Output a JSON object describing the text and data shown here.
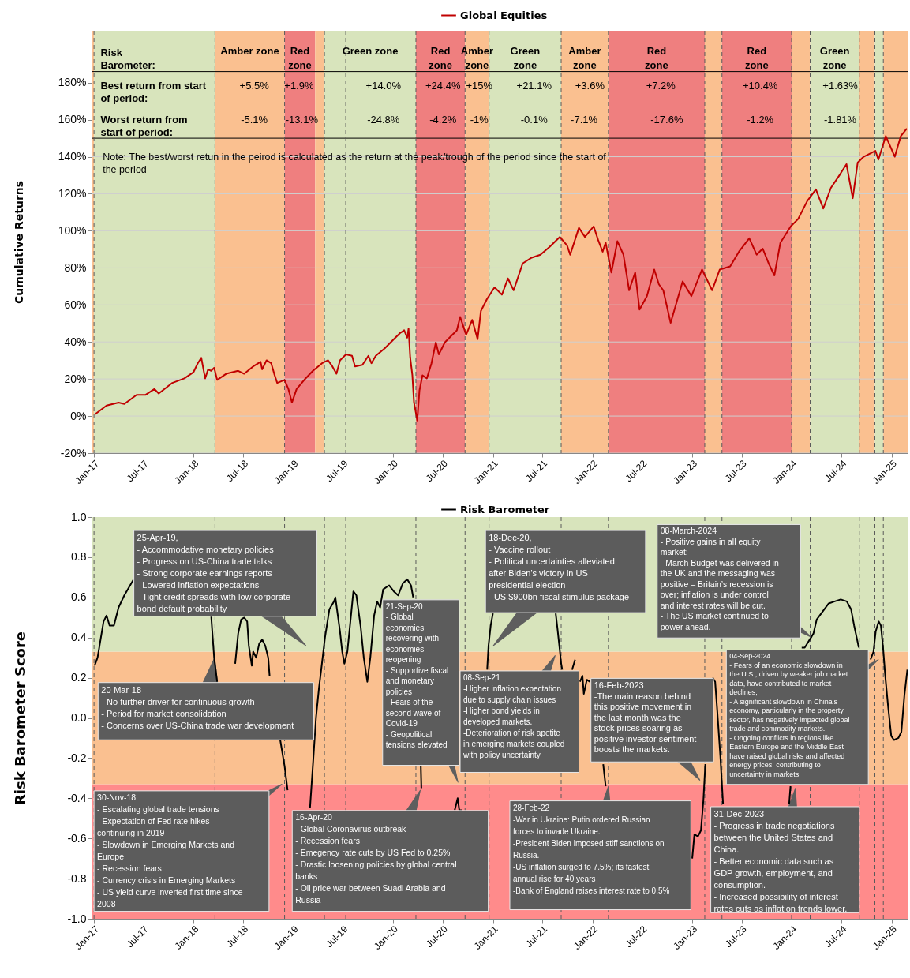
{
  "chart_data": [
    {
      "type": "line",
      "ylabel": "Cumulative Returns",
      "legend": "top",
      "grid": "y",
      "xlim": [
        "2016-12-23",
        "2025-02-28"
      ],
      "ylim": [
        -20,
        208
      ],
      "xticks": [
        {
          "value": "2017-01",
          "label": "Jan-17"
        },
        {
          "value": "2017-07",
          "label": "Jul-17"
        },
        {
          "value": "2018-01",
          "label": "Jan-18"
        },
        {
          "value": "2018-07",
          "label": "Jul-18"
        },
        {
          "value": "2019-01",
          "label": "Jan-19"
        },
        {
          "value": "2019-07",
          "label": "Jul-19"
        },
        {
          "value": "2020-01",
          "label": "Jan-20"
        },
        {
          "value": "2020-07",
          "label": "Jul-20"
        },
        {
          "value": "2021-01",
          "label": "Jan-21"
        },
        {
          "value": "2021-07",
          "label": "Jul-21"
        },
        {
          "value": "2022-01",
          "label": "Jan-22"
        },
        {
          "value": "2022-07",
          "label": "Jul-22"
        },
        {
          "value": "2023-01",
          "label": "Jan-23"
        },
        {
          "value": "2023-07",
          "label": "Jul-23"
        },
        {
          "value": "2024-01",
          "label": "Jan-24"
        },
        {
          "value": "2024-07",
          "label": "Jul-24"
        },
        {
          "value": "2025-01",
          "label": "Jan-25"
        }
      ],
      "yticks": [
        {
          "value": -20,
          "label": "-20%"
        },
        {
          "value": 0,
          "label": "0%"
        },
        {
          "value": 20,
          "label": "20%"
        },
        {
          "value": 40,
          "label": "40%"
        },
        {
          "value": 60,
          "label": "60%"
        },
        {
          "value": 80,
          "label": "80%"
        },
        {
          "value": 100,
          "label": "100%"
        },
        {
          "value": 120,
          "label": "120%"
        },
        {
          "value": 140,
          "label": "140%"
        },
        {
          "value": 160,
          "label": "160%"
        },
        {
          "value": 180,
          "label": "180%"
        }
      ],
      "x": [
        "2017-01-03",
        "2017-02-16",
        "2017-04-01",
        "2017-04-22",
        "2017-06-06",
        "2017-07-08",
        "2017-08-10",
        "2017-08-26",
        "2017-10-15",
        "2017-11-28",
        "2017-12-31",
        "2018-01-16",
        "2018-01-29",
        "2018-02-12",
        "2018-02-23",
        "2018-03-06",
        "2018-03-17",
        "2018-03-28",
        "2018-04-30",
        "2018-06-13",
        "2018-07-05",
        "2018-08-07",
        "2018-09-03",
        "2018-09-09",
        "2018-09-25",
        "2018-10-12",
        "2018-10-23",
        "2018-11-03",
        "2018-11-30",
        "2018-12-14",
        "2018-12-27",
        "2019-01-13",
        "2019-02-10",
        "2019-03-14",
        "2019-04-16",
        "2019-05-08",
        "2019-05-24",
        "2019-06-08",
        "2019-06-21",
        "2019-07-13",
        "2019-08-04",
        "2019-08-15",
        "2019-09-11",
        "2019-10-03",
        "2019-10-14",
        "2019-10-30",
        "2019-12-02",
        "2020-01-04",
        "2020-01-26",
        "2020-02-11",
        "2020-02-22",
        "2020-02-27",
        "2020-03-04",
        "2020-03-12",
        "2020-03-18",
        "2020-03-30",
        "2020-04-07",
        "2020-04-18",
        "2020-05-04",
        "2020-05-21",
        "2020-06-06",
        "2020-06-17",
        "2020-07-09",
        "2020-07-31",
        "2020-08-22",
        "2020-09-03",
        "2020-09-25",
        "2020-10-17",
        "2020-11-06",
        "2020-11-18",
        "2020-12-10",
        "2021-01-07",
        "2021-02-03",
        "2021-02-25",
        "2021-03-18",
        "2021-04-20",
        "2021-05-23",
        "2021-06-24",
        "2021-07-27",
        "2021-09-03",
        "2021-09-30",
        "2021-10-11",
        "2021-11-12",
        "2021-12-04",
        "2022-01-05",
        "2022-01-21",
        "2022-02-07",
        "2022-02-18",
        "2022-03-11",
        "2022-04-02",
        "2022-04-24",
        "2022-05-15",
        "2022-06-06",
        "2022-06-22",
        "2022-07-19",
        "2022-08-15",
        "2022-09-01",
        "2022-09-17",
        "2022-10-14",
        "2022-11-05",
        "2022-11-27",
        "2022-12-29",
        "2023-02-06",
        "2023-03-15",
        "2023-04-12",
        "2023-05-20",
        "2023-06-21",
        "2023-07-29",
        "2023-08-25",
        "2023-09-16",
        "2023-10-08",
        "2023-10-29",
        "2023-11-20",
        "2023-12-28",
        "2024-01-24",
        "2024-02-26",
        "2024-03-29",
        "2024-04-25",
        "2024-05-23",
        "2024-06-25",
        "2024-07-19",
        "2024-08-11",
        "2024-08-29",
        "2024-09-20",
        "2024-11-02",
        "2024-11-13",
        "2024-12-10",
        "2025-01-12",
        "2025-02-03",
        "2025-02-25"
      ],
      "series": [
        {
          "name": "Global Equities",
          "color": "#c00000",
          "line_style": "solid",
          "values": [
            0.8,
            5.7,
            7.3,
            6.5,
            11.4,
            11.4,
            14.6,
            12.2,
            17.9,
            20.3,
            23.6,
            28.5,
            31.4,
            20.3,
            25.2,
            24.4,
            26.0,
            19.5,
            22.8,
            24.4,
            22.8,
            26.8,
            29.3,
            25.2,
            30.1,
            28.5,
            22.8,
            17.9,
            19.5,
            14.6,
            7.3,
            14.6,
            19.5,
            24.4,
            28.5,
            30.1,
            26.8,
            22.8,
            30.1,
            33.3,
            32.5,
            26.8,
            27.6,
            32.5,
            28.5,
            32.5,
            36.6,
            41.5,
            44.7,
            46.3,
            42.3,
            47.2,
            31.7,
            22.0,
            7.3,
            -2.4,
            13.8,
            22.0,
            20.3,
            28.5,
            39.8,
            33.3,
            39.8,
            43.1,
            46.3,
            53.5,
            43.9,
            51.9,
            41.5,
            56.7,
            63.1,
            69.5,
            65.5,
            74.3,
            67.9,
            82.4,
            85.5,
            87.1,
            91.2,
            96.7,
            92.0,
            87.1,
            101.6,
            96.7,
            102.4,
            95.2,
            88.7,
            93.6,
            77.5,
            94.4,
            87.1,
            67.9,
            77.5,
            57.5,
            64.7,
            79.1,
            71.1,
            67.9,
            50.3,
            61.5,
            72.7,
            64.7,
            79.1,
            67.9,
            79.1,
            80.8,
            88.7,
            96.0,
            87.1,
            90.4,
            82.4,
            75.9,
            93.6,
            102.4,
            106.4,
            116.0,
            122.4,
            112.0,
            123.2,
            130.4,
            136.0,
            117.6,
            136.8,
            140.0,
            143.2,
            138.4,
            151.2,
            140.0,
            151.2,
            155.2
          ]
        }
      ],
      "bands": [
        {
          "axis": "x",
          "from": "2016-12-23",
          "to": "2017-01-01",
          "color": "#fac090"
        },
        {
          "axis": "x",
          "from": "2017-01-01",
          "to": "2018-03-20",
          "color": "#d8e4bc"
        },
        {
          "axis": "x",
          "from": "2018-03-20",
          "to": "2018-11-30",
          "color": "#fac090",
          "label": "Amber zone"
        },
        {
          "axis": "x",
          "from": "2018-11-30",
          "to": "2019-03-22",
          "color": "#ef7f7f",
          "label": "Red\nzone"
        },
        {
          "axis": "x",
          "from": "2019-03-22",
          "to": "2019-04-25",
          "color": "#fac090"
        },
        {
          "axis": "x",
          "from": "2019-04-25",
          "to": "2020-03-25",
          "color": "#d8e4bc",
          "label": "Green zone"
        },
        {
          "axis": "x",
          "from": "2020-03-25",
          "to": "2020-09-21",
          "color": "#ef7f7f",
          "label": "Red\nzone"
        },
        {
          "axis": "x",
          "from": "2020-09-21",
          "to": "2020-12-18",
          "color": "#fac090",
          "label": "Amber\nzone"
        },
        {
          "axis": "x",
          "from": "2020-12-18",
          "to": "2021-09-08",
          "color": "#d8e4bc",
          "label": "Green\nzone"
        },
        {
          "axis": "x",
          "from": "2021-09-08",
          "to": "2022-02-28",
          "color": "#fac090",
          "label": "Amber\nzone"
        },
        {
          "axis": "x",
          "from": "2022-02-28",
          "to": "2023-02-16",
          "color": "#ef7f7f",
          "label": "Red\nzone"
        },
        {
          "axis": "x",
          "from": "2023-02-16",
          "to": "2023-04-20",
          "color": "#fac090"
        },
        {
          "axis": "x",
          "from": "2023-04-20",
          "to": "2023-12-31",
          "color": "#ef7f7f",
          "label": "Red\nzone"
        },
        {
          "axis": "x",
          "from": "2023-12-31",
          "to": "2024-03-08",
          "color": "#fac090"
        },
        {
          "axis": "x",
          "from": "2024-03-08",
          "to": "2024-09-04",
          "color": "#d8e4bc",
          "label": "Green\nzone"
        },
        {
          "axis": "x",
          "from": "2024-09-04",
          "to": "2024-10-31",
          "color": "#fac090"
        },
        {
          "axis": "x",
          "from": "2024-10-31",
          "to": "2024-12-01",
          "color": "#d8e4bc"
        },
        {
          "axis": "x",
          "from": "2024-12-01",
          "to": "2025-02-28",
          "color": "#fac090"
        }
      ],
      "ref_lines": [
        {
          "axis": "y",
          "value": 186,
          "line_style": "solid",
          "color": "#000000"
        },
        {
          "axis": "y",
          "value": 169,
          "line_style": "solid",
          "color": "#000000"
        },
        {
          "axis": "y",
          "value": 150,
          "line_style": "solid",
          "color": "#000000"
        },
        {
          "axis": "x",
          "value": "2017-01-01",
          "line_style": "dashed"
        },
        {
          "axis": "x",
          "value": "2018-03-20",
          "line_style": "dashed"
        },
        {
          "axis": "x",
          "value": "2018-11-30",
          "line_style": "dashed"
        },
        {
          "axis": "x",
          "value": "2019-04-25",
          "line_style": "dashed"
        },
        {
          "axis": "x",
          "value": "2019-07-12",
          "line_style": "dashed"
        },
        {
          "axis": "x",
          "value": "2020-03-25",
          "line_style": "dashed"
        },
        {
          "axis": "x",
          "value": "2020-09-21",
          "line_style": "dashed"
        },
        {
          "axis": "x",
          "value": "2020-12-18",
          "line_style": "dashed"
        },
        {
          "axis": "x",
          "value": "2021-09-08",
          "line_style": "dashed"
        },
        {
          "axis": "x",
          "value": "2022-02-28",
          "line_style": "dashed"
        },
        {
          "axis": "x",
          "value": "2023-02-16",
          "line_style": "dashed"
        },
        {
          "axis": "x",
          "value": "2023-04-20",
          "line_style": "dashed"
        },
        {
          "axis": "x",
          "value": "2023-12-31",
          "line_style": "dashed"
        },
        {
          "axis": "x",
          "value": "2024-03-08",
          "line_style": "dashed"
        },
        {
          "axis": "x",
          "value": "2024-09-04",
          "line_style": "dashed"
        },
        {
          "axis": "x",
          "value": "2024-10-31",
          "line_style": "dashed"
        },
        {
          "axis": "x",
          "value": "2024-12-01",
          "line_style": "dashed"
        }
      ],
      "annotations": [
        "Risk\nBarometer:",
        "Best return from start\nof period:",
        "Worst return from\nstart of period:",
        "+5.5%",
        "+1.9%",
        "+14.0%",
        "+24.4%",
        "+15%",
        "+21.1%",
        "+3.6%",
        "+7.2%",
        "+10.4%",
        "+1.63%",
        "-5.1%",
        "-13.1%",
        "-24.8%",
        "-4.2%",
        "-1%",
        "-0.1%",
        "-7.1%",
        "-17.6%",
        "-1.2%",
        "-1.81%",
        "Note: The best/worst retun in the peirod is calculated as the return at the peak/trough  of the period since the start of\nthe period"
      ]
    },
    {
      "type": "line",
      "ylabel": "Risk Barometer Score",
      "legend": "top",
      "grid": false,
      "xlim": [
        "2016-12-23",
        "2025-02-28"
      ],
      "ylim": [
        -1,
        1
      ],
      "xticks": [
        {
          "value": "2017-01",
          "label": "Jan-17"
        },
        {
          "value": "2017-07",
          "label": "Jul-17"
        },
        {
          "value": "2018-01",
          "label": "Jan-18"
        },
        {
          "value": "2018-07",
          "label": "Jul-18"
        },
        {
          "value": "2019-01",
          "label": "Jan-19"
        },
        {
          "value": "2019-07",
          "label": "Jul-19"
        },
        {
          "value": "2020-01",
          "label": "Jan-20"
        },
        {
          "value": "2020-07",
          "label": "Jul-20"
        },
        {
          "value": "2021-01",
          "label": "Jan-21"
        },
        {
          "value": "2021-07",
          "label": "Jul-21"
        },
        {
          "value": "2022-01",
          "label": "Jan-22"
        },
        {
          "value": "2022-07",
          "label": "Jul-22"
        },
        {
          "value": "2023-01",
          "label": "Jan-23"
        },
        {
          "value": "2023-07",
          "label": "Jul-23"
        },
        {
          "value": "2024-01",
          "label": "Jan-24"
        },
        {
          "value": "2024-07",
          "label": "Jul-24"
        },
        {
          "value": "2025-01",
          "label": "Jan-25"
        }
      ],
      "yticks": [
        {
          "value": -1,
          "label": "-1.0"
        },
        {
          "value": -0.8,
          "label": "-0.8"
        },
        {
          "value": -0.6,
          "label": "-0.6"
        },
        {
          "value": -0.4,
          "label": "-0.4"
        },
        {
          "value": -0.2,
          "label": "-0.2"
        },
        {
          "value": 0,
          "label": "0.0"
        },
        {
          "value": 0.2,
          "label": "0.2"
        },
        {
          "value": 0.4,
          "label": "0.4"
        },
        {
          "value": 0.6,
          "label": "0.6"
        },
        {
          "value": 0.8,
          "label": "0.8"
        },
        {
          "value": 1,
          "label": "1.0"
        }
      ],
      "x": [
        "2017-01-03",
        "2017-01-14",
        "2017-02-05",
        "2017-02-16",
        "2017-02-27",
        "2017-03-15",
        "2017-04-01",
        "2017-04-22",
        "2017-05-26",
        "2017-09-01",
        "2018-03-06",
        "2018-03-17",
        "2018-03-28",
        "2018-04-10",
        "2018-04-24",
        "2018-04-27",
        "2018-05-15",
        "2018-06-02",
        "2018-06-13",
        "2018-06-24",
        "2018-07-05",
        "2018-07-16",
        "2018-07-22",
        "2018-08-02",
        "2018-08-07",
        "2018-08-18",
        "2018-08-29",
        "2018-09-09",
        "2018-09-20",
        "2018-10-01",
        "2018-10-06",
        "2018-10-20",
        "2018-11-14",
        "2018-11-30",
        "2018-12-11",
        "2018-12-27",
        "2019-02-01",
        "2019-03-03",
        "2019-03-14",
        "2019-03-25",
        "2019-04-05",
        "2019-04-14",
        "2019-04-27",
        "2019-05-13",
        "2019-05-30",
        "2019-06-04",
        "2019-06-10",
        "2019-06-21",
        "2019-06-29",
        "2019-07-07",
        "2019-07-18",
        "2019-07-29",
        "2019-08-09",
        "2019-08-20",
        "2019-09-05",
        "2019-09-16",
        "2019-09-29",
        "2019-10-10",
        "2019-10-24",
        "2019-11-04",
        "2019-11-15",
        "2019-11-26",
        "2019-12-18",
        "2020-01-04",
        "2020-01-20",
        "2020-02-06",
        "2020-02-22",
        "2020-03-07",
        "2020-03-15",
        "2020-03-30",
        "2020-04-12",
        "2020-04-14",
        "2020-06-01",
        "2020-08-14",
        "2020-08-25",
        "2020-08-31",
        "2020-09-10",
        "2020-09-18",
        "2020-10-15",
        "2020-12-11",
        "2020-12-16",
        "2020-12-24",
        "2021-01-01",
        "2021-05-01",
        "2021-08-19",
        "2021-08-25",
        "2021-09-02",
        "2021-09-08",
        "2021-09-12",
        "2021-10-01",
        "2021-10-18",
        "2021-10-29",
        "2021-11-03",
        "2021-11-16",
        "2021-11-25",
        "2021-11-30",
        "2021-12-11",
        "2021-12-22",
        "2022-01-15",
        "2022-02-09",
        "2022-02-18",
        "2022-02-25",
        "2022-07-01",
        "2023-01-01",
        "2023-01-09",
        "2023-01-22",
        "2023-02-02",
        "2023-02-11",
        "2023-02-18",
        "2023-03-01",
        "2023-03-17",
        "2023-03-26",
        "2023-04-03",
        "2023-04-14",
        "2023-04-24",
        "2023-08-01",
        "2023-12-22",
        "2023-12-27",
        "2024-01-15",
        "2024-02-06",
        "2024-02-17",
        "2024-03-20",
        "2024-04-01",
        "2024-04-23",
        "2024-05-15",
        "2024-06-06",
        "2024-06-28",
        "2024-07-20",
        "2024-08-05",
        "2024-08-16",
        "2024-08-27",
        "2024-09-02",
        "2024-09-20",
        "2024-10-15",
        "2024-10-26",
        "2024-11-03",
        "2024-11-14",
        "2024-11-22",
        "2024-11-30",
        "2024-12-08",
        "2024-12-19",
        "2024-12-30",
        "2025-01-09",
        "2025-01-25",
        "2025-02-05",
        "2025-02-16",
        "2025-02-27"
      ],
      "series": [
        {
          "name": "Risk Barometer",
          "color": "#000000",
          "line_style": "solid",
          "values": [
            0.26,
            0.3,
            0.48,
            0.51,
            0.46,
            0.46,
            0.55,
            0.61,
            0.69,
            null,
            0.51,
            0.3,
            0.18,
            null,
            null,
            null,
            null,
            0.27,
            0.42,
            0.49,
            0.5,
            0.48,
            0.36,
            0.26,
            0.33,
            0.3,
            0.37,
            0.39,
            0.36,
            0.3,
            0.21,
            null,
            -0.11,
            -0.24,
            -0.36,
            null,
            null,
            -0.45,
            -0.23,
            0.0,
            0.15,
            0.25,
            0.4,
            0.54,
            0.58,
            0.6,
            0.54,
            0.43,
            0.33,
            0.27,
            0.33,
            0.48,
            0.63,
            0.61,
            0.45,
            0.3,
            0.18,
            0.3,
            0.51,
            0.58,
            0.55,
            0.64,
            0.66,
            0.63,
            0.61,
            0.67,
            0.69,
            0.66,
            0.6,
            null,
            -0.24,
            -0.35,
            null,
            -0.46,
            -0.4,
            -0.46,
            -0.46,
            null,
            null,
            0.24,
            0.36,
            0.46,
            0.52,
            null,
            0.52,
            0.45,
            0.35,
            0.27,
            0.24,
            null,
            0.24,
            0.29,
            null,
            0.18,
            0.21,
            0.12,
            0.19,
            0.18,
            null,
            -0.23,
            -0.34,
            null,
            null,
            -0.7,
            -0.58,
            -0.59,
            -0.56,
            -0.41,
            -0.23,
            null,
            0.2,
            0.18,
            0.03,
            -0.19,
            -0.43,
            null,
            -0.43,
            -0.34,
            null,
            0.35,
            0.35,
            0.42,
            0.49,
            0.53,
            0.57,
            0.58,
            0.59,
            0.58,
            0.54,
            0.46,
            0.39,
            0.35,
            null,
            0.29,
            0.33,
            0.43,
            0.48,
            0.46,
            0.35,
            0.21,
            0.05,
            -0.09,
            -0.11,
            -0.1,
            -0.07,
            0.11,
            0.24
          ]
        }
      ],
      "bands": [
        {
          "axis": "y",
          "from": -1,
          "to": -0.33,
          "color": "#ff8b8b"
        },
        {
          "axis": "y",
          "from": -0.33,
          "to": 0.33,
          "color": "#fac090"
        },
        {
          "axis": "y",
          "from": 0.33,
          "to": 1,
          "color": "#d8e4bc"
        }
      ],
      "ref_lines": [
        {
          "axis": "x",
          "value": "2017-01-01",
          "line_style": "dashed"
        },
        {
          "axis": "x",
          "value": "2018-03-20",
          "line_style": "dashed"
        },
        {
          "axis": "x",
          "value": "2018-11-30",
          "line_style": "dashed"
        },
        {
          "axis": "x",
          "value": "2019-04-25",
          "line_style": "dashed"
        },
        {
          "axis": "x",
          "value": "2019-07-12",
          "line_style": "dashed"
        },
        {
          "axis": "x",
          "value": "2020-03-25",
          "line_style": "dashed"
        },
        {
          "axis": "x",
          "value": "2020-09-21",
          "line_style": "dashed"
        },
        {
          "axis": "x",
          "value": "2020-12-18",
          "line_style": "dashed"
        },
        {
          "axis": "x",
          "value": "2021-09-08",
          "line_style": "dashed"
        },
        {
          "axis": "x",
          "value": "2022-02-28",
          "line_style": "dashed"
        },
        {
          "axis": "x",
          "value": "2023-02-16",
          "line_style": "dashed"
        },
        {
          "axis": "x",
          "value": "2023-04-20",
          "line_style": "dashed"
        },
        {
          "axis": "x",
          "value": "2023-12-31",
          "line_style": "dashed"
        },
        {
          "axis": "x",
          "value": "2024-03-08",
          "line_style": "dashed"
        },
        {
          "axis": "x",
          "value": "2024-09-04",
          "line_style": "dashed"
        },
        {
          "axis": "x",
          "value": "2024-10-31",
          "line_style": "dashed"
        },
        {
          "axis": "x",
          "value": "2024-12-01",
          "line_style": "dashed"
        }
      ],
      "annotations": [
        "25-Apr-19,\n- Accommodative monetary policies\n- Progress on US-China trade talks\n- Strong corporate earnings reports\n- Lowered inflation expectations\n- Tight credit spreads with low corporate\nbond default probability",
        "20-Mar-18\n- No further driver for continuous growth\n- Period for market consolidation\n- Concerns over US-China trade war development",
        "30-Nov-18\n- Escalating global trade tensions\n- Expectation of Fed rate hikes\ncontinuing in 2019\n- Slowdown in Emerging Markets and\nEurope\n- Recession fears\n- Currency crisis in Emerging Markets\n- US yield curve inverted first time since\n2008",
        "16-Apr-20\n- Global Coronavirus outbreak\n- Recession fears\n- Emegency rate cuts by US Fed to 0.25%\n- Drastic loosening policies by global central\nbanks\n- Oil price war between Suadi Arabia and\nRussia",
        "21-Sep-20\n- Global\neconomies\nrecovering with\neconomies\nreopening\n- Supportive fiscal\nand monetary\npolicies\n- Fears of the\nsecond wave of\nCovid-19\n- Geopolitical\ntensions elevated",
        "18-Dec-20,\n- Vaccine rollout\n- Political uncertainties alleviated\nafter Biden's victory in US\npresidential election\n- US $900bn fiscal stimulus package",
        "08-Sep-21\n-Higher inflation expectation\ndue to supply chain issues\n-Higher bond yields in\ndeveloped markets.\n-Deterioration of risk apetite\nin emerging markets coupled\nwith policy uncertainty",
        "28-Feb-22\n-War in Ukraine: Putin ordered Russian\nforces to invade Ukraine.\n-President Biden imposed stiff sanctions on\nRussia.\n-US inflation surged to 7.5%; its fastest\nannual rise for 40 years\n-Bank of England raises interest rate to 0.5%",
        "16-Feb-2023\n-The main reason behind\nthis positive movement in\nthe last month was the\nstock prices soaring as\npositive investor sentiment\nboosts the markets.",
        "08-March-2024\n- Positive gains in all equity\nmarket;\n- March Budget was delivered in\nthe UK and the messaging was\npositive – Britain’s recession is\nover; inflation is under control\nand interest rates will be cut.\n- The US market continued to\npower ahead.",
        "04-Sep-2024\n- Fears of an economic slowdown in\nthe U.S., driven by weaker job market\ndata, have contributed to market\ndeclines;\n- A significant slowdown in China's\neconomy, particularly in the property\nsector, has negatively impacted global\ntrade and commodity markets.\n- Ongoing conflicts in regions like\nEastern Europe and the Middle East\nhave raised global risks and affected\nenergy prices, contributing to\nuncertainty in markets.",
        "31-Dec-2023\n- Progress in trade negotiations\nbetween the United States and\nChina.\n- Better economic data such as\nGDP growth, employment, and\nconsumption.\n- Increased possibility of interest\nrates cuts as inflation trends lower."
      ]
    }
  ]
}
